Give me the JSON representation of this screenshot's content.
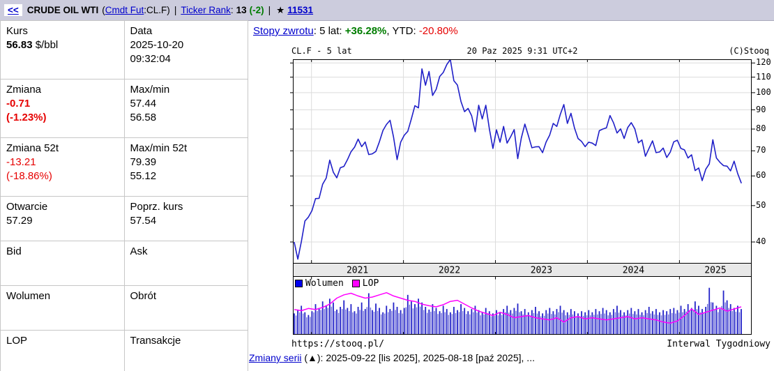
{
  "top_bar": {
    "back": "<<",
    "title": "CRUDE OIL WTI",
    "paren_open": "(",
    "market_link": "Cmdt Fut",
    "symbol_suffix": ":CL.F)",
    "sep1": "|",
    "rank_link": "Ticker Rank",
    "rank_colon": ":",
    "rank_value": "13",
    "rank_change": "(-2)",
    "sep2": "|",
    "star": "★",
    "fav_count": "11531"
  },
  "quote": {
    "kurs": {
      "label": "Kurs",
      "value": "56.83",
      "unit": "$/bbl"
    },
    "data": {
      "label": "Data",
      "line1": "2025-10-20",
      "line2": "09:32:04"
    },
    "zmiana": {
      "label": "Zmiana",
      "line1": "-0.71",
      "line2": "(-1.23%)"
    },
    "maxmin": {
      "label": "Max/min",
      "line1": "57.44",
      "line2": "56.58"
    },
    "zmiana52": {
      "label": "Zmiana 52t",
      "line1": "-13.21",
      "line2": "(-18.86%)"
    },
    "maxmin52": {
      "label": "Max/min 52t",
      "line1": "79.39",
      "line2": "55.12"
    },
    "otwarcie": {
      "label": "Otwarcie",
      "value": "57.29"
    },
    "poprz": {
      "label": "Poprz. kurs",
      "value": "57.54"
    },
    "bid": {
      "label": "Bid"
    },
    "ask": {
      "label": "Ask"
    },
    "wolumen": {
      "label": "Wolumen"
    },
    "obrot": {
      "label": "Obrót"
    },
    "lop": {
      "label": "LOP"
    },
    "transakcje": {
      "label": "Transakcje"
    }
  },
  "returns": {
    "link": "Stopy zwrotu",
    "colon": ": ",
    "label_5y": "5 lat: ",
    "value_5y": "+36.28%",
    "comma": ", ",
    "label_ytd": "YTD: ",
    "value_ytd": "-20.80%"
  },
  "chart": {
    "title_left": "CL.F - 5 lat",
    "title_center": "20 Paz 2025 9:31 UTC+2",
    "title_right": "(C)Stooq",
    "legend_wolumen": "Wolumen",
    "legend_lop": "LOP",
    "footer_left": "https://stooq.pl/",
    "footer_right": "Interwal Tygodniowy"
  },
  "series_note": {
    "link": "Zmiany serii",
    "rest": " (▲): 2025-09-22 [lis 2025], 2025-08-18 [paź 2025], ..."
  },
  "colors": {
    "topbar_bg": "#ccccdd",
    "link_blue": "#0000cc",
    "price_line": "#1f1fc8",
    "volume_bar": "#2323c8",
    "volume_bar_light": "#6b6bd9",
    "lop_line": "#ff00ff",
    "legend_wolumen_swatch": "#0000ee",
    "legend_lop_swatch": "#ff00ff",
    "grid": "#dcdcdc",
    "band_bg": "#e8e8e8",
    "up_green": "#007d00",
    "down_red": "#e60000"
  },
  "chart_data": {
    "type": "line",
    "title": "CL.F - 5 lat",
    "timestamp": "20 Paz 2025 9:31 UTC+2",
    "interval": "Tygodniowy",
    "x_range": [
      "2020-10",
      "2025-10"
    ],
    "x_ticks": [
      "2021",
      "2022",
      "2023",
      "2024",
      "2025"
    ],
    "y_axis": {
      "scale": "log",
      "ticks": [
        120,
        110,
        100,
        90,
        80,
        70,
        60,
        50,
        40
      ],
      "unit": "$/bbl"
    },
    "legend": [
      {
        "label": "Wolumen",
        "color": "#0000ee"
      },
      {
        "label": "LOP",
        "color": "#ff00ff"
      }
    ],
    "series": [
      {
        "name": "CL.F kurs ($/bbl, tygodniowo)",
        "values": [
          39.9,
          36.0,
          40.1,
          45.5,
          46.6,
          48.5,
          52.2,
          52.3,
          57.0,
          59.2,
          66.1,
          61.4,
          59.3,
          63.1,
          63.6,
          66.3,
          69.6,
          71.6,
          75.2,
          71.8,
          73.9,
          68.4,
          68.7,
          69.7,
          74.0,
          79.3,
          82.3,
          84.4,
          76.1,
          66.3,
          73.8,
          77.0,
          78.9,
          85.1,
          92.3,
          91.1,
          115.7,
          104.7,
          113.9,
          98.3,
          102.1,
          110.5,
          113.2,
          118.9,
          122.6,
          107.6,
          104.8,
          94.7,
          89.0,
          90.8,
          86.8,
          78.7,
          92.6,
          85.1,
          92.6,
          80.1,
          71.0,
          79.6,
          73.8,
          81.3,
          73.4,
          76.3,
          79.7,
          66.7,
          75.7,
          82.5,
          76.8,
          71.3,
          71.7,
          71.8,
          69.2,
          73.9,
          77.1,
          82.8,
          81.3,
          87.5,
          93.0,
          82.8,
          88.1,
          80.5,
          75.5,
          74.1,
          71.8,
          73.8,
          73.4,
          72.3,
          79.2,
          80.0,
          80.6,
          86.9,
          83.1,
          78.1,
          80.1,
          75.5,
          80.7,
          83.2,
          80.1,
          73.5,
          74.8,
          67.7,
          71.0,
          74.4,
          69.2,
          69.5,
          71.2,
          67.2,
          69.5,
          74.0,
          74.7,
          71.0,
          70.4,
          67.0,
          68.3,
          62.0,
          63.0,
          58.3,
          62.5,
          64.6,
          74.9,
          67.0,
          65.2,
          63.9,
          63.7,
          61.9,
          65.7,
          60.9,
          57.5
        ]
      },
      {
        "name": "Wolumen (względny 0-1)",
        "values": [
          0.38,
          0.45,
          0.52,
          0.4,
          0.35,
          0.42,
          0.55,
          0.48,
          0.6,
          0.52,
          0.65,
          0.58,
          0.45,
          0.5,
          0.62,
          0.48,
          0.55,
          0.42,
          0.5,
          0.58,
          0.46,
          0.75,
          0.44,
          0.56,
          0.48,
          0.4,
          0.52,
          0.46,
          0.58,
          0.5,
          0.44,
          0.48,
          0.72,
          0.6,
          0.55,
          0.65,
          0.58,
          0.5,
          0.45,
          0.55,
          0.48,
          0.42,
          0.52,
          0.46,
          0.4,
          0.5,
          0.44,
          0.55,
          0.48,
          0.42,
          0.46,
          0.52,
          0.44,
          0.4,
          0.48,
          0.42,
          0.38,
          0.44,
          0.4,
          0.46,
          0.52,
          0.44,
          0.48,
          0.56,
          0.42,
          0.46,
          0.4,
          0.44,
          0.5,
          0.42,
          0.38,
          0.44,
          0.48,
          0.42,
          0.46,
          0.52,
          0.44,
          0.4,
          0.46,
          0.42,
          0.38,
          0.42,
          0.4,
          0.44,
          0.4,
          0.46,
          0.42,
          0.48,
          0.44,
          0.4,
          0.46,
          0.52,
          0.44,
          0.4,
          0.44,
          0.48,
          0.42,
          0.46,
          0.4,
          0.44,
          0.5,
          0.42,
          0.46,
          0.4,
          0.44,
          0.42,
          0.46,
          0.48,
          0.44,
          0.52,
          0.46,
          0.55,
          0.48,
          0.6,
          0.52,
          0.46,
          0.5,
          0.85,
          0.58,
          0.52,
          0.46,
          0.8,
          0.62,
          0.55,
          0.48,
          0.52,
          0.46
        ]
      },
      {
        "name": "LOP (względny 0-1)",
        "values": [
          0.45,
          0.43,
          0.47,
          0.45,
          0.49,
          0.55,
          0.66,
          0.72,
          0.75,
          0.7,
          0.66,
          0.68,
          0.72,
          0.76,
          0.7,
          0.66,
          0.62,
          0.6,
          0.55,
          0.52,
          0.5,
          0.54,
          0.6,
          0.62,
          0.55,
          0.48,
          0.42,
          0.38,
          0.34,
          0.4,
          0.36,
          0.3,
          0.32,
          0.34,
          0.3,
          0.28,
          0.26,
          0.3,
          0.22,
          0.3,
          0.32,
          0.28,
          0.3,
          0.28,
          0.26,
          0.28,
          0.3,
          0.32,
          0.28,
          0.3,
          0.28,
          0.26,
          0.22,
          0.2,
          0.24,
          0.34,
          0.46,
          0.36,
          0.4,
          0.44,
          0.48,
          0.42,
          0.46,
          0.5
        ]
      }
    ]
  }
}
